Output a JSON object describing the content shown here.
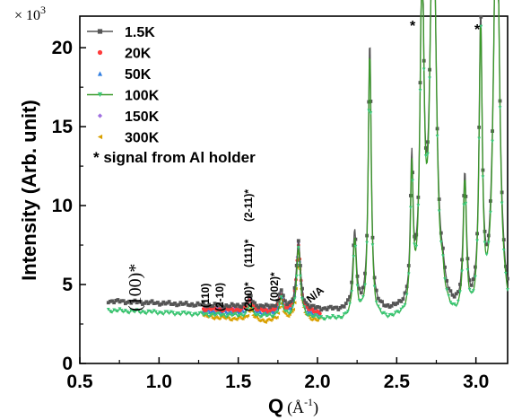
{
  "chart_data": {
    "type": "line",
    "xlabel": "Q (Å⁻¹)",
    "xlabel_main": "Q",
    "xlabel_unit": "(Å",
    "xlabel_exp": "-1",
    "xlabel_close": ")",
    "ylabel": "Intensity (Arb. unit)",
    "y_multiplier": "× 10",
    "y_multiplier_exp": "3",
    "xlim": [
      0.5,
      3.2
    ],
    "ylim": [
      0,
      22
    ],
    "x_ticks": [
      0.5,
      1.0,
      1.5,
      2.0,
      2.5,
      3.0
    ],
    "x_tick_labels": [
      "0.5",
      "1.0",
      "1.5",
      "2.0",
      "2.5",
      "3.0"
    ],
    "y_ticks": [
      0,
      5,
      10,
      15,
      20
    ],
    "y_tick_labels": [
      "0",
      "5",
      "10",
      "15",
      "20"
    ],
    "grid": false,
    "legend_position": "top-left",
    "series": [
      {
        "name": "1.5K",
        "color": "#555555",
        "marker": "square",
        "line": true
      },
      {
        "name": "20K",
        "color": "#ff3b3b",
        "marker": "circle",
        "line": false
      },
      {
        "name": "50K",
        "color": "#2f7de1",
        "marker": "triangle-up",
        "line": false
      },
      {
        "name": "100K",
        "color": "#3a9a2a",
        "marker": "triangle-down",
        "line": true,
        "marker_color": "#3cc878"
      },
      {
        "name": "150K",
        "color": "#a070e0",
        "marker": "diamond",
        "line": false
      },
      {
        "name": "300K",
        "color": "#d9a000",
        "marker": "triangle-left",
        "line": false
      }
    ],
    "note": "* signal from Al holder",
    "peaks": [
      {
        "label": "(100)*",
        "x": 0.88
      },
      {
        "label": "(110)",
        "x": 1.29
      },
      {
        "label": "(2-10)",
        "x": 1.38
      },
      {
        "label": "(200)*",
        "x": 1.55
      },
      {
        "label": "(111)*",
        "x": 1.63
      },
      {
        "label": "(2-11)*",
        "x": 1.71
      },
      {
        "label": "(002)*",
        "x": 1.76
      },
      {
        "label": "N/A",
        "x": 1.98
      },
      {
        "label": "*",
        "x": 2.6
      },
      {
        "label": "*",
        "x": 3.05
      }
    ],
    "profile": {
      "x_start": 0.68,
      "x_end": 3.2,
      "baseline_start": 3.7,
      "baseline_end": 2.6,
      "peaks": [
        {
          "x": 1.575,
          "h": 0.7,
          "w": 0.018
        },
        {
          "x": 1.77,
          "h": 1.1,
          "w": 0.015
        },
        {
          "x": 1.88,
          "h": 4.3,
          "w": 0.015
        },
        {
          "x": 2.235,
          "h": 5.0,
          "w": 0.013
        },
        {
          "x": 2.33,
          "h": 17.0,
          "w": 0.011
        },
        {
          "x": 2.595,
          "h": 8.8,
          "w": 0.01
        },
        {
          "x": 2.66,
          "h": 22.0,
          "w": 0.014
        },
        {
          "x": 2.73,
          "h": 30.0,
          "w": 0.02
        },
        {
          "x": 2.79,
          "h": 1.0,
          "w": 0.012
        },
        {
          "x": 2.93,
          "h": 8.4,
          "w": 0.012
        },
        {
          "x": 3.03,
          "h": 18.0,
          "w": 0.012
        },
        {
          "x": 3.13,
          "h": 30.0,
          "w": 0.02
        }
      ],
      "low_T_range": [
        1.28,
        2.02
      ]
    }
  }
}
